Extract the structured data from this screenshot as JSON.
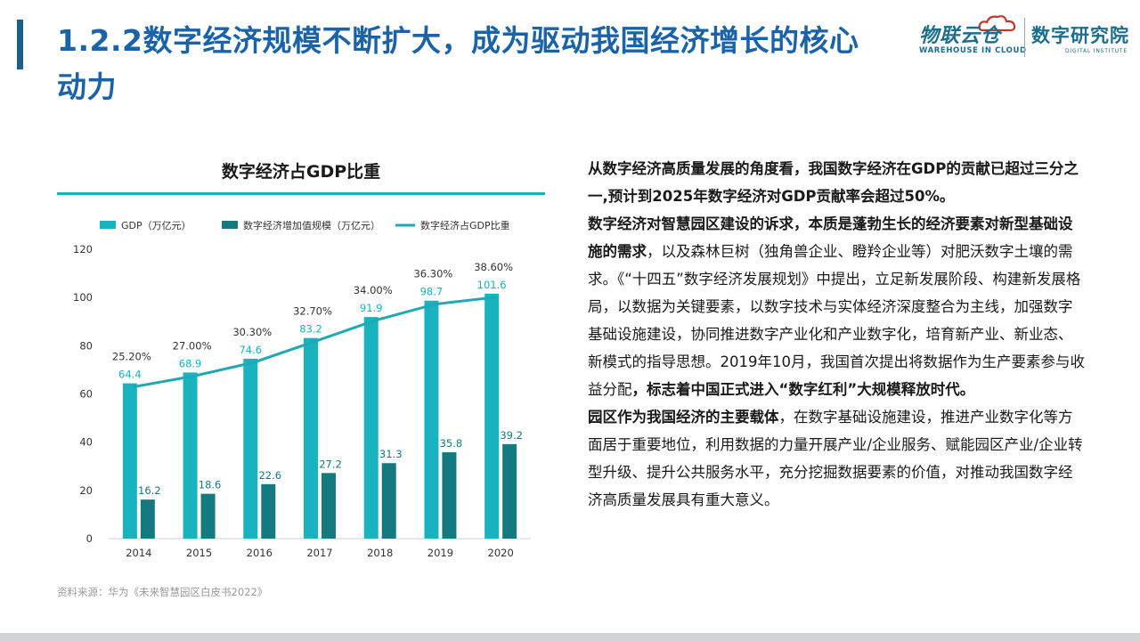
{
  "slide": {
    "title": "1.2.2数字经济规模不断扩大，成为驱动我国经济增长的核心动力",
    "logo_left_cn": "物联云仓",
    "logo_left_en": "WAREHOUSE IN CLOUD",
    "logo_right_cn": "数字研究院",
    "logo_right_en": "DIGITAL INSTITUTE",
    "source": "资料来源：华为《未来智慧园区白皮书2022》"
  },
  "colors": {
    "title": "#1a63a8",
    "accent_bar": "#1b5f8c",
    "bar_gdp": "#18b3be",
    "bar_digital": "#147a80",
    "line_share": "#1ea9b4"
  },
  "text": {
    "p1": "从数字经济高质量发展的角度看，我国数字经济在GDP的贡献已超过三分之一,预计到2025年数字经济对GDP贡献率会超过50%。",
    "p2_bold": "数字经济对智慧园区建设的诉求，本质是蓬勃生长的经济要素对新型基础设施的需求",
    "p2_rest": "，以及森林巨树（独角兽企业、瞪羚企业等）对肥沃数字土壤的需求。《“十四五”数字经济发展规划》中提出，立足新发展阶段、构建新发展格局，以数据为关键要素，以数字技术与实体经济深度整合为主线，加强数字基础设施建设，协同推进数字产业化和产业数字化，培育新产业、新业态、新模式的指导思想。2019年10月，我国首次提出将数据作为生产要素参与收益分配",
    "p2_bold2": "，标志着中国正式进入“数字红利”大规模释放时代。",
    "p3_bold": "园区作为我国经济的主要载体",
    "p3_rest": "，在数字基础设施建设，推进产业数字化等方面居于重要地位，利用数据的力量开展产业/企业服务、赋能园区产业/企业转型升级、提升公共服务水平，充分挖掘数据要素的价值，对推动我国数字经济高质量发展具有重大意义。"
  },
  "chart_data": {
    "type": "bar",
    "title": "数字经济占GDP比重",
    "categories": [
      "2014",
      "2015",
      "2016",
      "2017",
      "2018",
      "2019",
      "2020"
    ],
    "series": [
      {
        "name": "GDP（万亿元）",
        "type": "bar",
        "values": [
          64.4,
          68.9,
          74.6,
          83.2,
          91.9,
          98.7,
          101.6
        ]
      },
      {
        "name": "数字经济增加值规模（万亿元）",
        "type": "bar",
        "values": [
          16.2,
          18.6,
          22.6,
          27.2,
          31.3,
          35.8,
          39.2
        ]
      },
      {
        "name": "数字经济占GDP比重",
        "type": "line",
        "values": [
          25.2,
          27.0,
          30.3,
          32.7,
          34.0,
          36.3,
          38.6
        ],
        "labels": [
          "25.20%",
          "27.00%",
          "30.30%",
          "32.70%",
          "34.00%",
          "36.30%",
          "38.60%"
        ]
      }
    ],
    "yticks": [
      "0",
      "20",
      "40",
      "60",
      "80",
      "100",
      "120"
    ],
    "ylim": [
      0,
      120
    ],
    "legend_position": "top",
    "grid": false
  }
}
